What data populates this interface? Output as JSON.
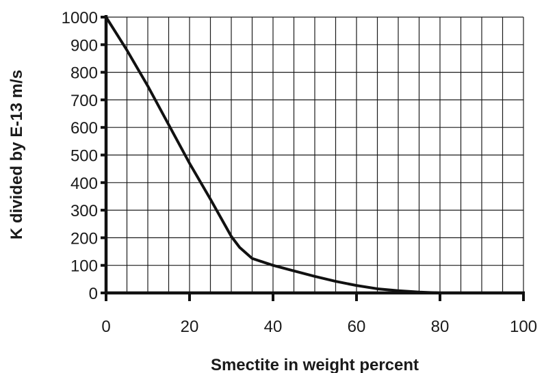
{
  "chart_data": {
    "type": "line",
    "title": "",
    "xlabel": "Smectite in weight percent",
    "ylabel": "K divided by E-13 m/s",
    "xlim": [
      0,
      100
    ],
    "ylim": [
      0,
      1000
    ],
    "x_ticks": [
      0,
      20,
      40,
      60,
      80,
      100
    ],
    "y_ticks": [
      0,
      100,
      200,
      300,
      400,
      500,
      600,
      700,
      800,
      900,
      1000
    ],
    "x_grid_step": 5,
    "y_grid_step": 100,
    "grid": true,
    "legend": "none",
    "series": [
      {
        "x": [
          0,
          5,
          10,
          15,
          20,
          25,
          30,
          32,
          35,
          40,
          45,
          50,
          55,
          60,
          65,
          70,
          75,
          80,
          90,
          100
        ],
        "y": [
          1000,
          880,
          750,
          610,
          470,
          340,
          205,
          165,
          125,
          100,
          80,
          60,
          42,
          27,
          15,
          8,
          3,
          0,
          0,
          0
        ]
      }
    ],
    "colors": {
      "line": "#111111",
      "grid": "#1a1a1a",
      "background": "#ffffff"
    }
  }
}
